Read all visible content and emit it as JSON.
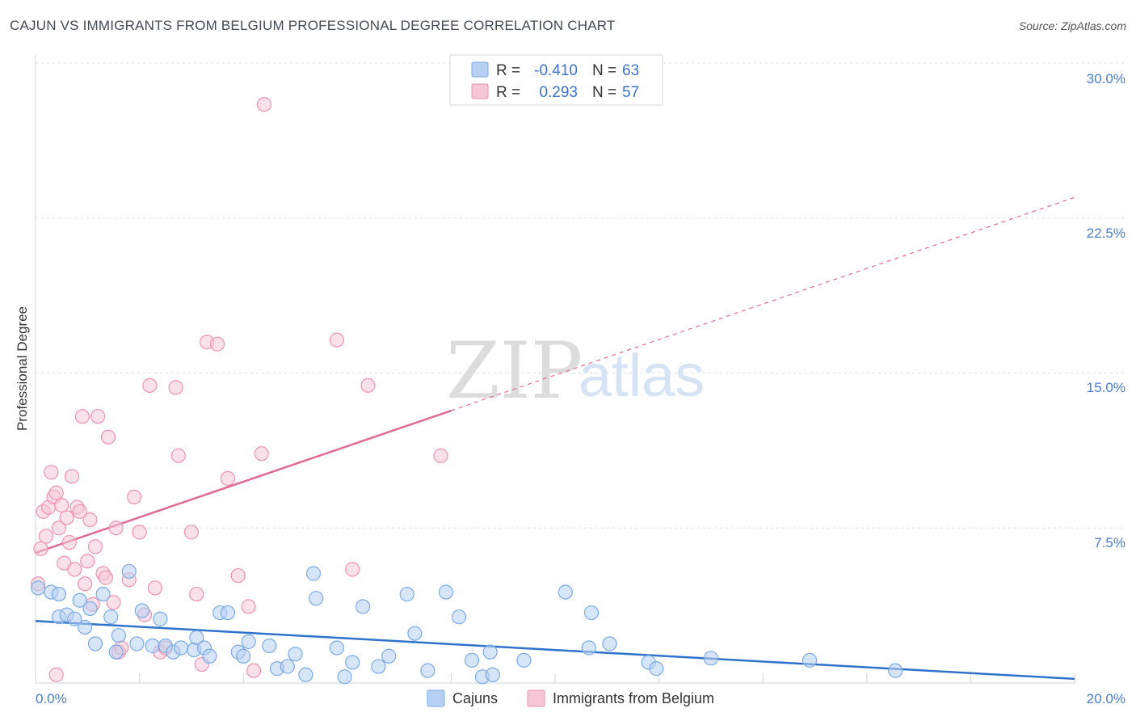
{
  "header": {
    "title": "CAJUN VS IMMIGRANTS FROM BELGIUM PROFESSIONAL DEGREE CORRELATION CHART",
    "source": "Source: ZipAtlas.com"
  },
  "watermark": {
    "zip": "ZIP",
    "atlas": "atlas"
  },
  "colors": {
    "blue": "#7aaae6",
    "blue_fill": "#b7d0f3",
    "blue_line": "#2f72cc",
    "pink": "#ec93b1",
    "pink_fill": "#f6c6d6",
    "pink_line": "#e06a93",
    "tick": "#4a7cc7"
  },
  "legend": {
    "rows": [
      {
        "r_label": "R =",
        "r_value": "-0.410",
        "n_label": "N =",
        "n_value": "63"
      },
      {
        "r_label": "R =",
        "r_value": "0.293",
        "n_label": "N =",
        "n_value": "57"
      }
    ]
  },
  "bottom_legend": {
    "series1": "Cajuns",
    "series2": "Immigrants from Belgium"
  },
  "chart_data": {
    "type": "scatter",
    "title": "CAJUN VS IMMIGRANTS FROM BELGIUM PROFESSIONAL DEGREE CORRELATION CHART",
    "xlabel": "",
    "ylabel": "Professional Degree",
    "xlim": [
      0,
      20
    ],
    "ylim": [
      0,
      30
    ],
    "x_tick_labels": [
      "0.0%",
      "20.0%"
    ],
    "y_ticks": [
      7.5,
      15.0,
      22.5,
      30.0
    ],
    "y_tick_labels": [
      "7.5%",
      "15.0%",
      "22.5%",
      "30.0%"
    ],
    "series": [
      {
        "name": "Cajuns",
        "R": -0.41,
        "N": 63,
        "trend": {
          "x": [
            0,
            20
          ],
          "y": [
            3.0,
            0.2
          ],
          "dashed_from": null
        },
        "points": [
          [
            0.05,
            4.6
          ],
          [
            0.3,
            4.4
          ],
          [
            0.45,
            4.3
          ],
          [
            0.45,
            3.2
          ],
          [
            0.6,
            3.3
          ],
          [
            0.75,
            3.1
          ],
          [
            0.85,
            4.0
          ],
          [
            0.95,
            2.7
          ],
          [
            1.05,
            3.6
          ],
          [
            1.15,
            1.9
          ],
          [
            1.3,
            4.3
          ],
          [
            1.45,
            3.2
          ],
          [
            1.55,
            1.5
          ],
          [
            1.6,
            2.3
          ],
          [
            1.8,
            5.4
          ],
          [
            1.95,
            1.9
          ],
          [
            2.05,
            3.5
          ],
          [
            2.25,
            1.8
          ],
          [
            2.4,
            3.1
          ],
          [
            2.5,
            1.8
          ],
          [
            2.65,
            1.5
          ],
          [
            2.8,
            1.7
          ],
          [
            3.05,
            1.6
          ],
          [
            3.1,
            2.2
          ],
          [
            3.25,
            1.7
          ],
          [
            3.35,
            1.3
          ],
          [
            3.55,
            3.4
          ],
          [
            3.7,
            3.4
          ],
          [
            3.9,
            1.5
          ],
          [
            4.0,
            1.3
          ],
          [
            4.1,
            2.0
          ],
          [
            4.5,
            1.8
          ],
          [
            4.65,
            0.7
          ],
          [
            4.85,
            0.8
          ],
          [
            5.0,
            1.4
          ],
          [
            5.2,
            0.4
          ],
          [
            5.35,
            5.3
          ],
          [
            5.4,
            4.1
          ],
          [
            5.8,
            1.7
          ],
          [
            5.95,
            0.3
          ],
          [
            6.1,
            1.0
          ],
          [
            6.3,
            3.7
          ],
          [
            6.6,
            0.8
          ],
          [
            6.8,
            1.3
          ],
          [
            7.15,
            4.3
          ],
          [
            7.3,
            2.4
          ],
          [
            7.55,
            0.6
          ],
          [
            7.9,
            4.4
          ],
          [
            8.15,
            3.2
          ],
          [
            8.4,
            1.1
          ],
          [
            8.6,
            0.3
          ],
          [
            8.75,
            1.5
          ],
          [
            8.8,
            0.4
          ],
          [
            9.4,
            1.1
          ],
          [
            10.2,
            4.4
          ],
          [
            10.65,
            1.7
          ],
          [
            10.7,
            3.4
          ],
          [
            11.05,
            1.9
          ],
          [
            11.8,
            1.0
          ],
          [
            11.95,
            0.7
          ],
          [
            13.0,
            1.2
          ],
          [
            14.9,
            1.1
          ],
          [
            16.55,
            0.6
          ]
        ]
      },
      {
        "name": "Immigrants from Belgium",
        "R": 0.293,
        "N": 57,
        "trend": {
          "x": [
            0,
            20
          ],
          "y": [
            6.3,
            23.5
          ],
          "dashed_from": 8.0
        },
        "points": [
          [
            0.05,
            4.8
          ],
          [
            0.1,
            6.5
          ],
          [
            0.15,
            8.3
          ],
          [
            0.2,
            7.1
          ],
          [
            0.25,
            8.5
          ],
          [
            0.3,
            10.2
          ],
          [
            0.35,
            9.0
          ],
          [
            0.4,
            9.2
          ],
          [
            0.45,
            7.5
          ],
          [
            0.5,
            8.6
          ],
          [
            0.55,
            5.8
          ],
          [
            0.6,
            8.0
          ],
          [
            0.65,
            6.8
          ],
          [
            0.7,
            10.0
          ],
          [
            0.75,
            5.5
          ],
          [
            0.8,
            8.5
          ],
          [
            0.85,
            8.3
          ],
          [
            0.9,
            12.9
          ],
          [
            0.95,
            4.8
          ],
          [
            1.0,
            5.9
          ],
          [
            1.05,
            7.9
          ],
          [
            1.1,
            3.8
          ],
          [
            1.15,
            6.6
          ],
          [
            1.2,
            12.9
          ],
          [
            1.3,
            5.3
          ],
          [
            1.35,
            5.1
          ],
          [
            1.4,
            11.9
          ],
          [
            1.5,
            3.9
          ],
          [
            1.55,
            7.5
          ],
          [
            1.6,
            1.5
          ],
          [
            1.65,
            1.7
          ],
          [
            1.8,
            5.0
          ],
          [
            1.9,
            9.0
          ],
          [
            2.0,
            7.3
          ],
          [
            2.1,
            3.3
          ],
          [
            2.2,
            14.4
          ],
          [
            2.3,
            4.6
          ],
          [
            2.4,
            1.5
          ],
          [
            2.5,
            1.7
          ],
          [
            2.7,
            14.3
          ],
          [
            2.75,
            11.0
          ],
          [
            3.0,
            7.3
          ],
          [
            3.1,
            4.3
          ],
          [
            3.2,
            0.9
          ],
          [
            3.3,
            16.5
          ],
          [
            3.5,
            16.4
          ],
          [
            3.7,
            9.9
          ],
          [
            3.9,
            5.2
          ],
          [
            4.1,
            3.7
          ],
          [
            4.2,
            0.6
          ],
          [
            4.35,
            11.1
          ],
          [
            4.4,
            28.0
          ],
          [
            5.8,
            16.6
          ],
          [
            6.1,
            5.5
          ],
          [
            6.4,
            14.4
          ],
          [
            7.8,
            11.0
          ],
          [
            0.4,
            0.4
          ]
        ]
      }
    ]
  }
}
